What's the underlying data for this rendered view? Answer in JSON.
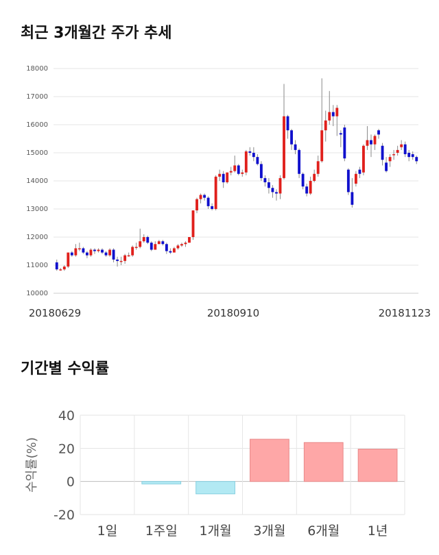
{
  "sections": {
    "price_title": "최근 3개월간 주가 추세",
    "returns_title": "기간별 수익률"
  },
  "chart_data": [
    {
      "type": "candlestick",
      "title": "최근 3개월간 주가 추세",
      "ylim": [
        10000,
        18000
      ],
      "yticks": [
        10000,
        11000,
        12000,
        13000,
        14000,
        15000,
        16000,
        17000,
        18000
      ],
      "xtick_labels": [
        "20180629",
        "20180910",
        "20181123"
      ],
      "grid": true,
      "colors": {
        "up": "#e0201c",
        "down": "#1010cc"
      },
      "candles": [
        [
          11100,
          10850,
          11200,
          10800
        ],
        [
          10850,
          10850,
          10900,
          10800
        ],
        [
          10850,
          10950,
          11000,
          10800
        ],
        [
          10950,
          11450,
          11450,
          10900
        ],
        [
          11450,
          11350,
          11500,
          11300
        ],
        [
          11350,
          11600,
          11750,
          11300
        ],
        [
          11600,
          11600,
          11800,
          11500
        ],
        [
          11600,
          11450,
          11650,
          11400
        ],
        [
          11450,
          11350,
          11500,
          11250
        ],
        [
          11350,
          11550,
          11600,
          11300
        ],
        [
          11550,
          11500,
          11600,
          11400
        ],
        [
          11500,
          11550,
          11600,
          11450
        ],
        [
          11550,
          11450,
          11600,
          11400
        ],
        [
          11450,
          11350,
          11500,
          11300
        ],
        [
          11350,
          11550,
          11600,
          11300
        ],
        [
          11550,
          11200,
          11600,
          11100
        ],
        [
          11200,
          11150,
          11300,
          10950
        ],
        [
          11150,
          11150,
          11300,
          11000
        ],
        [
          11150,
          11350,
          11400,
          11050
        ],
        [
          11350,
          11350,
          11450,
          11300
        ],
        [
          11350,
          11650,
          11700,
          11300
        ],
        [
          11650,
          11650,
          11800,
          11550
        ],
        [
          11650,
          11850,
          12300,
          11600
        ],
        [
          11850,
          12000,
          12100,
          11800
        ],
        [
          12000,
          11800,
          12050,
          11750
        ],
        [
          11800,
          11550,
          11850,
          11500
        ],
        [
          11550,
          11750,
          11850,
          11550
        ],
        [
          11750,
          11850,
          11900,
          11750
        ],
        [
          11850,
          11750,
          11900,
          11700
        ],
        [
          11750,
          11500,
          11800,
          11400
        ],
        [
          11500,
          11450,
          11600,
          11400
        ],
        [
          11450,
          11600,
          11650,
          11450
        ],
        [
          11600,
          11700,
          11750,
          11550
        ],
        [
          11700,
          11750,
          11800,
          11650
        ],
        [
          11750,
          11800,
          11850,
          11650
        ],
        [
          11800,
          12000,
          12000,
          11800
        ],
        [
          12000,
          12950,
          12950,
          11900
        ],
        [
          12950,
          13350,
          13400,
          12850
        ],
        [
          13350,
          13500,
          13550,
          13200
        ],
        [
          13500,
          13400,
          13550,
          13300
        ],
        [
          13400,
          13100,
          13450,
          13000
        ],
        [
          13100,
          13000,
          13200,
          12950
        ],
        [
          13000,
          14150,
          14200,
          12950
        ],
        [
          14150,
          14250,
          14400,
          14000
        ],
        [
          14250,
          13950,
          14350,
          13750
        ],
        [
          13950,
          14300,
          14300,
          13900
        ],
        [
          14300,
          14350,
          14500,
          14200
        ],
        [
          14350,
          14550,
          14900,
          14300
        ],
        [
          14550,
          14250,
          14600,
          14200
        ],
        [
          14250,
          14300,
          14400,
          14150
        ],
        [
          14300,
          15050,
          15100,
          14200
        ],
        [
          15050,
          15000,
          15200,
          14900
        ],
        [
          15000,
          14850,
          15200,
          14700
        ],
        [
          14850,
          14600,
          14950,
          14550
        ],
        [
          14600,
          14100,
          14700,
          14000
        ],
        [
          14100,
          13950,
          14200,
          13800
        ],
        [
          13950,
          13750,
          14100,
          13550
        ],
        [
          13750,
          13600,
          13850,
          13400
        ],
        [
          13600,
          13550,
          13700,
          13300
        ],
        [
          13550,
          14100,
          14200,
          13350
        ],
        [
          14100,
          16300,
          17450,
          14050
        ],
        [
          16300,
          15800,
          16350,
          15500
        ],
        [
          15800,
          15300,
          15850,
          15100
        ],
        [
          15300,
          15100,
          15450,
          14950
        ],
        [
          15100,
          14250,
          15150,
          14100
        ],
        [
          14250,
          13800,
          14300,
          13700
        ],
        [
          13800,
          13550,
          13900,
          13450
        ],
        [
          13550,
          14000,
          14150,
          13500
        ],
        [
          14000,
          14250,
          14400,
          13950
        ],
        [
          14250,
          14700,
          14900,
          14150
        ],
        [
          14700,
          15800,
          17650,
          14650
        ],
        [
          15800,
          16150,
          16500,
          15400
        ],
        [
          16150,
          16450,
          17200,
          16000
        ],
        [
          16450,
          16300,
          16700,
          15950
        ],
        [
          16300,
          16600,
          16700,
          15600
        ],
        [
          15700,
          15650,
          15800,
          15200
        ],
        [
          15900,
          14800,
          16000,
          14700
        ],
        [
          14400,
          13600,
          14450,
          13500
        ],
        [
          13600,
          13150,
          14100,
          13050
        ],
        [
          13900,
          14250,
          14350,
          13800
        ],
        [
          14400,
          14250,
          14500,
          14100
        ],
        [
          14300,
          15250,
          15300,
          14200
        ],
        [
          15250,
          15450,
          15950,
          15100
        ],
        [
          15450,
          15300,
          15650,
          14850
        ],
        [
          15300,
          15600,
          15650,
          15100
        ],
        [
          15800,
          15650,
          15850,
          15500
        ],
        [
          15250,
          14750,
          15350,
          14550
        ],
        [
          14650,
          14350,
          14850,
          14300
        ],
        [
          14700,
          14850,
          14950,
          14500
        ],
        [
          14950,
          14950,
          15100,
          14750
        ],
        [
          15000,
          15100,
          15250,
          14900
        ],
        [
          15200,
          15300,
          15450,
          15100
        ],
        [
          15300,
          14950,
          15400,
          14850
        ],
        [
          15000,
          14850,
          15100,
          14700
        ],
        [
          14950,
          14850,
          15050,
          14750
        ],
        [
          14850,
          14700,
          14900,
          14600
        ]
      ]
    },
    {
      "type": "bar",
      "title": "기간별 수익률",
      "ylabel": "수익률(%)",
      "ylim": [
        -20,
        40
      ],
      "yticks": [
        -20,
        0,
        20,
        40
      ],
      "categories": [
        "1일",
        "1주일",
        "1개월",
        "3개월",
        "6개월",
        "1년"
      ],
      "values": [
        0,
        -1.5,
        -7.5,
        25.5,
        23.5,
        19.5
      ],
      "grid": true,
      "colors": {
        "positive": "#fea7a7",
        "positive_edge": "#e88888",
        "negative": "#b2e9f3",
        "negative_edge": "#86cfe0"
      }
    }
  ]
}
